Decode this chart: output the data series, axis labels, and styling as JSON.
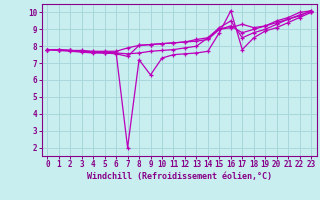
{
  "background_color": "#c8eef0",
  "grid_color": "#a8d8dc",
  "line_color": "#bb00bb",
  "marker_color": "#bb00bb",
  "xlabel": "Windchill (Refroidissement éolien,°C)",
  "xlim": [
    -0.5,
    23.5
  ],
  "ylim": [
    1.5,
    10.5
  ],
  "xticks": [
    0,
    1,
    2,
    3,
    4,
    5,
    6,
    7,
    8,
    9,
    10,
    11,
    12,
    13,
    14,
    15,
    16,
    17,
    18,
    19,
    20,
    21,
    22,
    23
  ],
  "yticks": [
    2,
    3,
    4,
    5,
    6,
    7,
    8,
    9,
    10
  ],
  "lines": [
    [
      0,
      7.8,
      1,
      7.8,
      2,
      7.75,
      3,
      7.75,
      4,
      7.7,
      5,
      7.7,
      6,
      7.7,
      7,
      7.9,
      8,
      8.05,
      9,
      8.1,
      10,
      8.15,
      11,
      8.2,
      12,
      8.25,
      13,
      8.3,
      14,
      8.4,
      15,
      9.0,
      16,
      9.2,
      17,
      8.8,
      18,
      9.0,
      19,
      9.2,
      20,
      9.5,
      21,
      9.7,
      22,
      10.0,
      23,
      10.1
    ],
    [
      0,
      7.8,
      1,
      7.78,
      2,
      7.75,
      3,
      7.7,
      4,
      7.65,
      5,
      7.65,
      6,
      7.6,
      7,
      7.55,
      8,
      7.6,
      9,
      7.7,
      10,
      7.75,
      11,
      7.8,
      12,
      7.9,
      13,
      8.0,
      14,
      8.5,
      15,
      9.1,
      16,
      9.5,
      17,
      8.5,
      18,
      8.8,
      19,
      9.0,
      20,
      9.3,
      21,
      9.6,
      22,
      9.8,
      23,
      10.1
    ],
    [
      0,
      7.8,
      1,
      7.78,
      2,
      7.75,
      3,
      7.7,
      4,
      7.65,
      5,
      7.6,
      6,
      7.6,
      7,
      2.0,
      8,
      7.2,
      9,
      6.3,
      10,
      7.3,
      11,
      7.5,
      12,
      7.55,
      13,
      7.6,
      14,
      7.7,
      15,
      8.8,
      16,
      10.1,
      17,
      7.8,
      18,
      8.5,
      19,
      8.9,
      20,
      9.1,
      21,
      9.4,
      22,
      9.7,
      23,
      10.0
    ],
    [
      0,
      7.8,
      1,
      7.75,
      2,
      7.7,
      3,
      7.65,
      4,
      7.6,
      5,
      7.6,
      6,
      7.55,
      7,
      7.4,
      8,
      8.05,
      9,
      8.1,
      10,
      8.15,
      11,
      8.2,
      12,
      8.25,
      13,
      8.4,
      14,
      8.5,
      15,
      9.0,
      16,
      9.1,
      17,
      9.3,
      18,
      9.1,
      19,
      9.2,
      20,
      9.4,
      21,
      9.6,
      22,
      9.85,
      23,
      10.05
    ]
  ],
  "spine_color": "#880088",
  "tick_color": "#880088",
  "xlabel_color": "#880088",
  "xlabel_fontsize": 6.0,
  "tick_fontsize": 5.5
}
